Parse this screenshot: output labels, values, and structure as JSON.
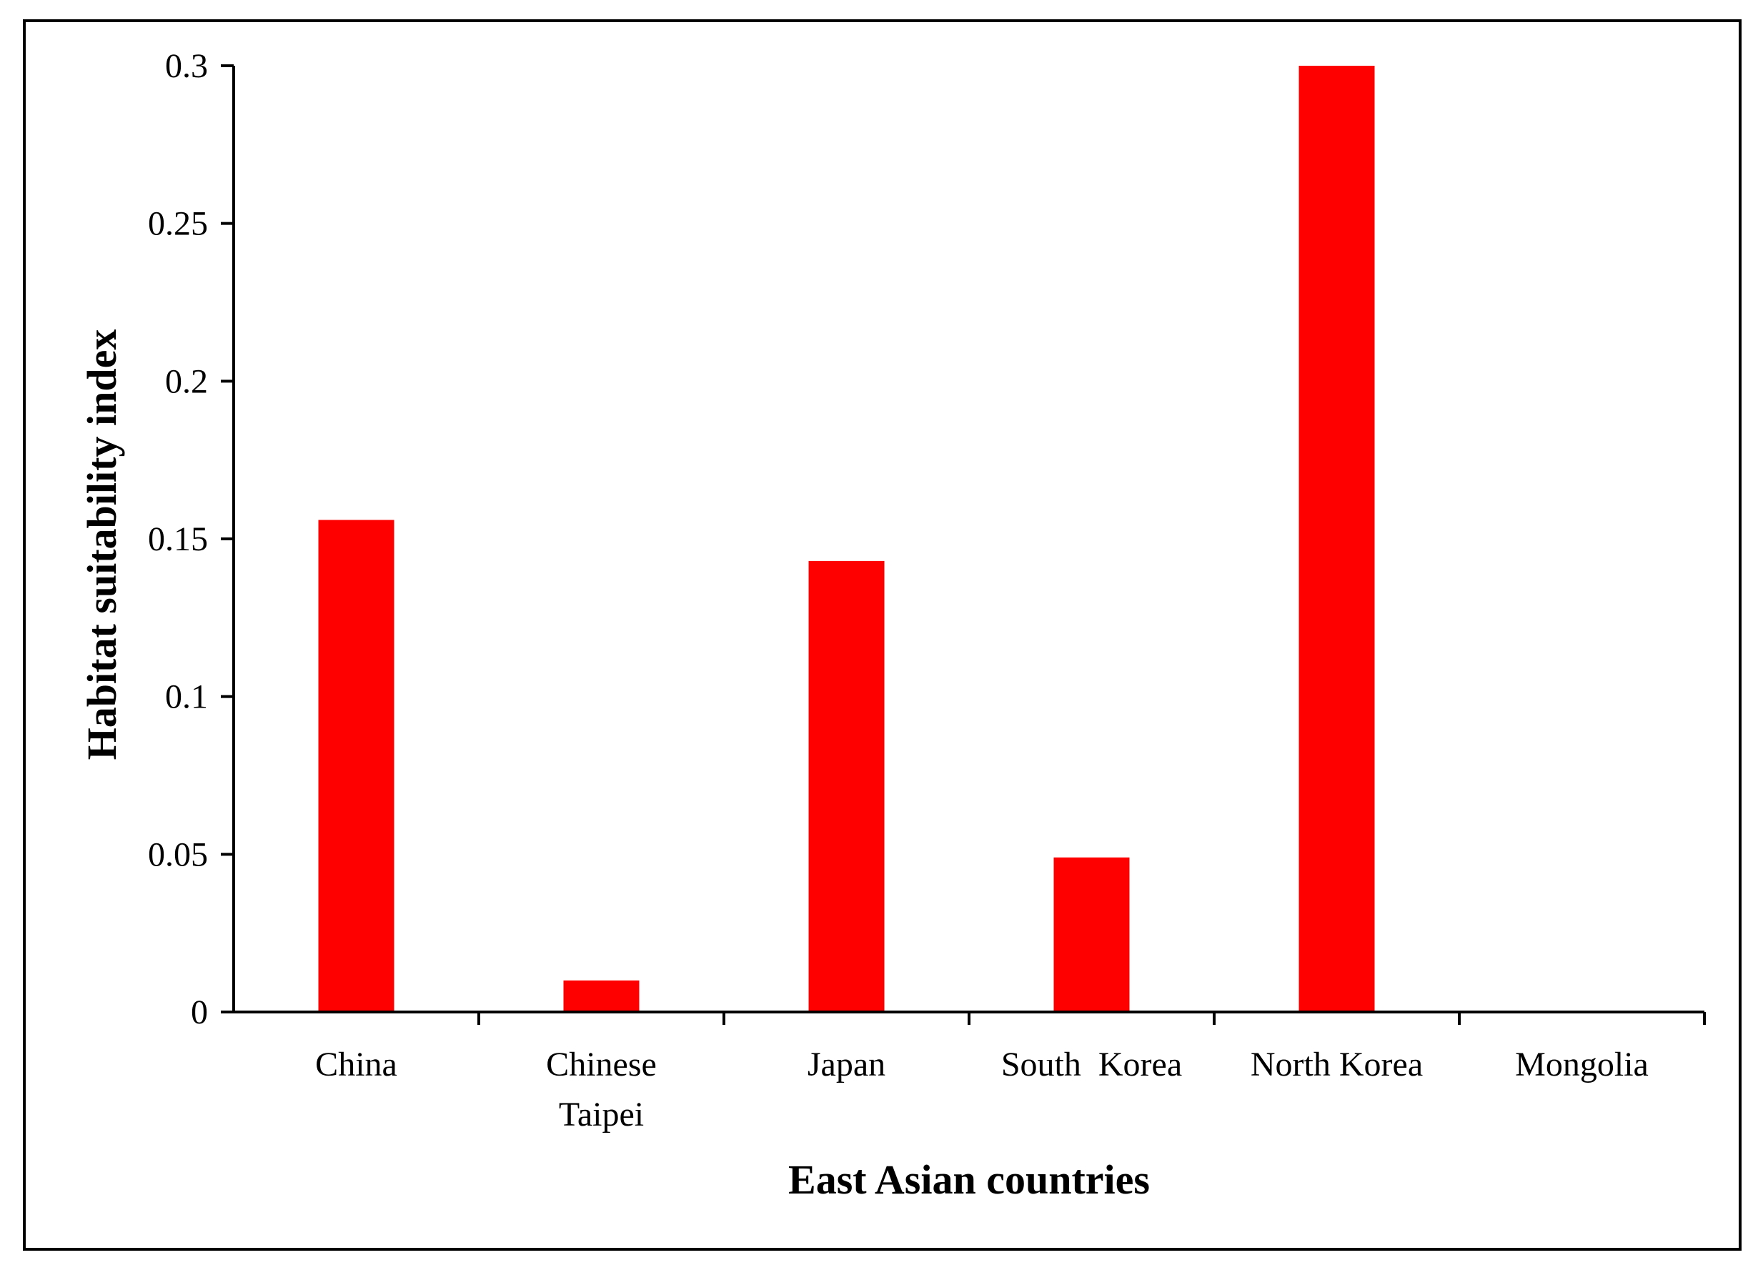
{
  "chart_data": {
    "type": "bar",
    "title": "",
    "xlabel": "East Asian countries",
    "ylabel": "Habitat suitability index",
    "categories": [
      [
        "China"
      ],
      [
        "Chinese",
        "Taipei"
      ],
      [
        "Japan"
      ],
      [
        "South  Korea"
      ],
      [
        "North Korea"
      ],
      [
        "Mongolia"
      ]
    ],
    "values": [
      0.156,
      0.01,
      0.143,
      0.049,
      0.3,
      0
    ],
    "ylim": [
      0,
      0.3
    ],
    "yticks": [
      0,
      0.05,
      0.1,
      0.15,
      0.2,
      0.25,
      0.3
    ],
    "ytick_labels": [
      "0",
      "0.05",
      "0.1",
      "0.15",
      "0.2",
      "0.25",
      "0.3"
    ],
    "grid": false,
    "legend": "none",
    "bar_color": "#ff0000"
  }
}
